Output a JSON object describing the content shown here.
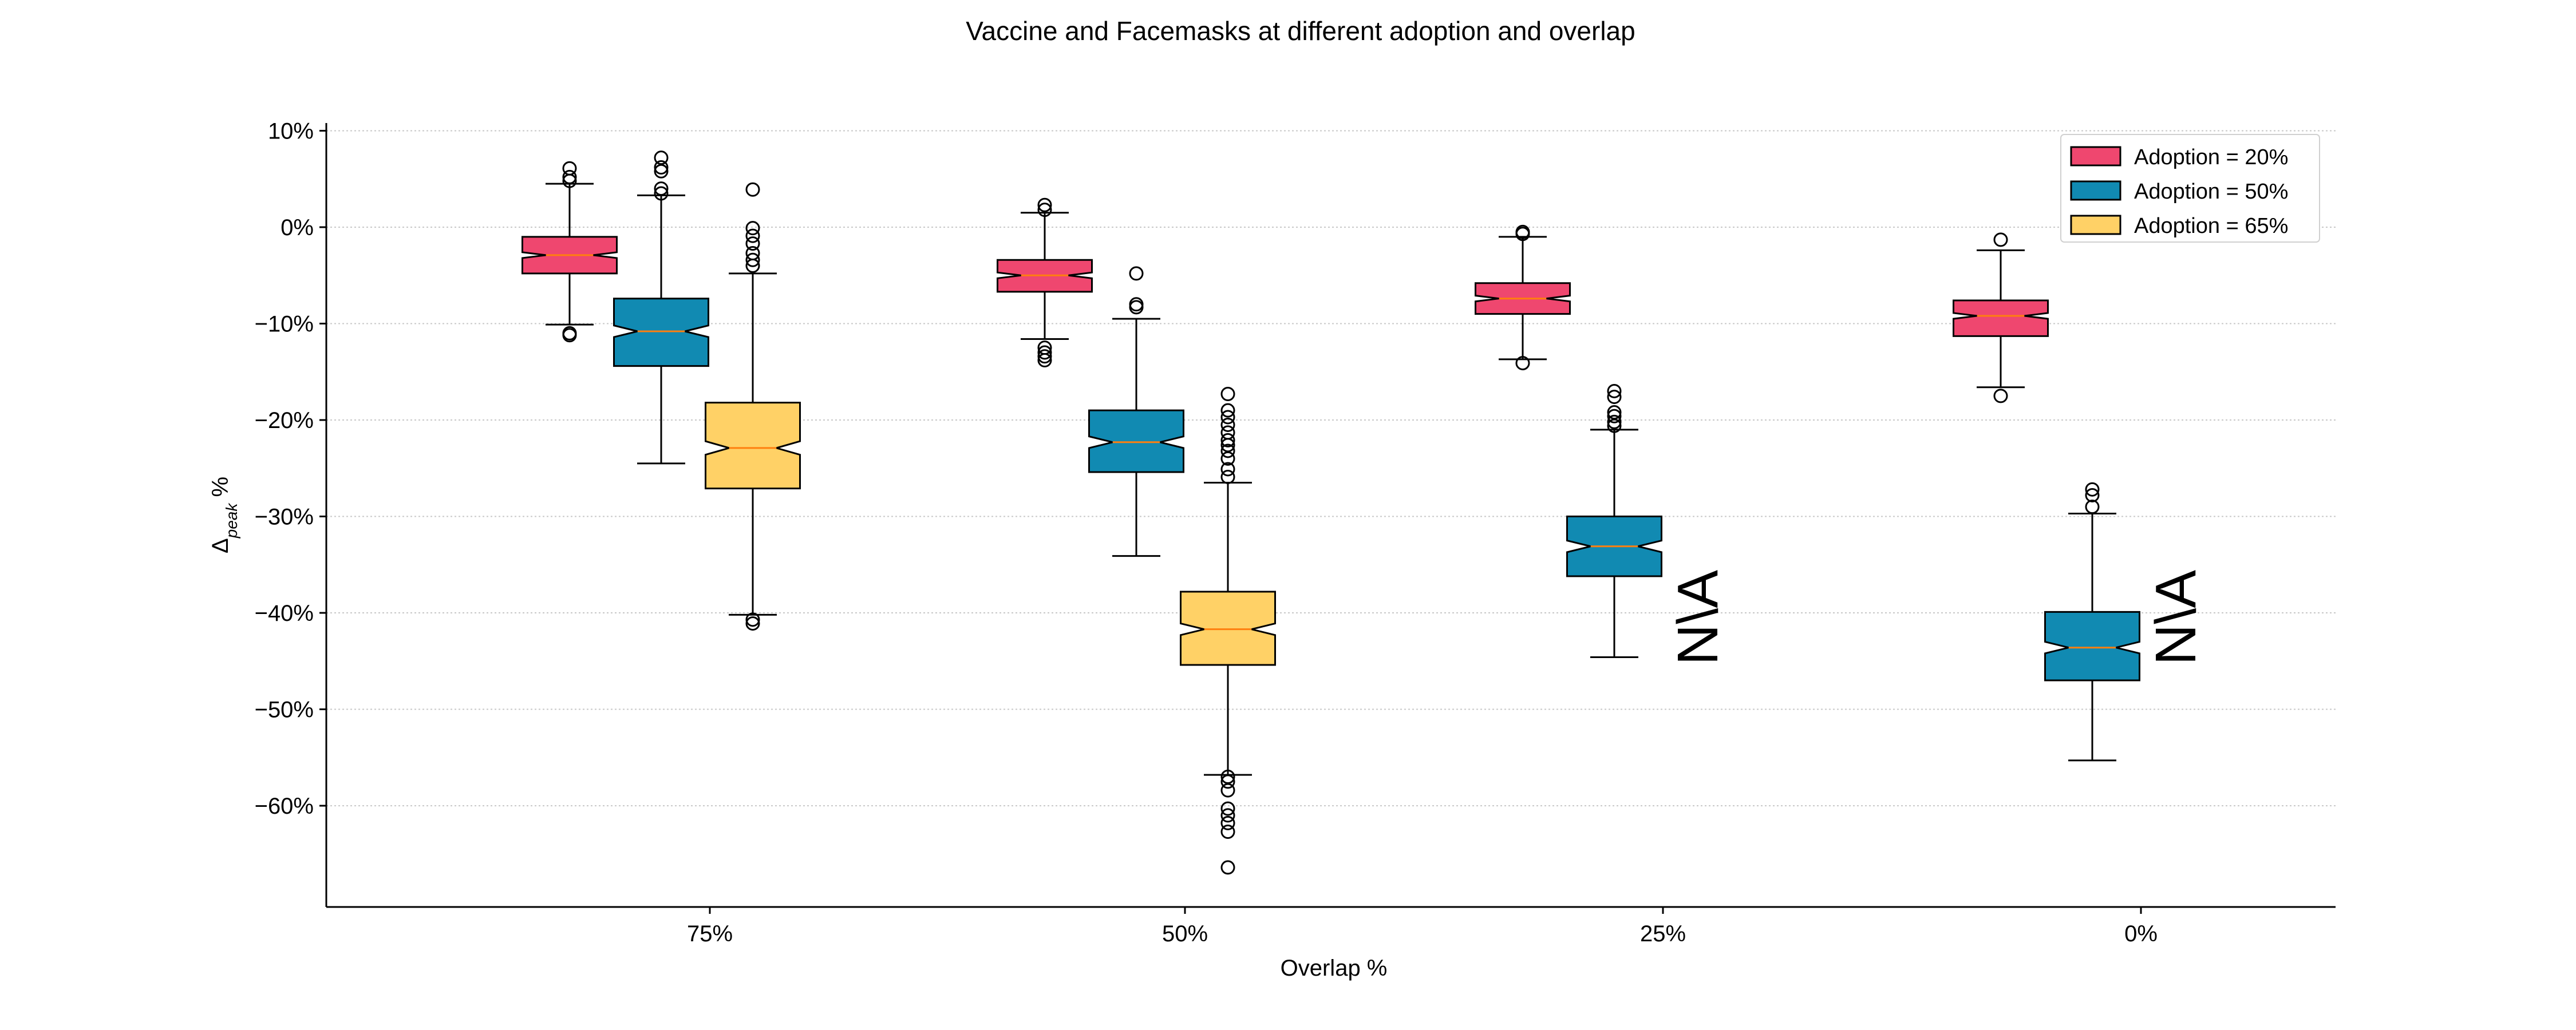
{
  "chart_data": {
    "type": "boxplot",
    "title": "Vaccine and Facemasks at different adoption and overlap",
    "xlabel": "Overlap %",
    "ylabel": {
      "base": "Δ",
      "sub": "peak",
      "suffix": " %"
    },
    "categories": [
      "75%",
      "50%",
      "25%",
      "0%"
    ],
    "yticks": [
      10,
      0,
      -10,
      -20,
      -30,
      -40,
      -50,
      -60
    ],
    "ytick_labels": [
      "10%",
      "0%",
      "−10%",
      "−20%",
      "−30%",
      "−40%",
      "−50%",
      "−60%"
    ],
    "ylim": [
      -70.5,
      10.8
    ],
    "grid": "horizontal dotted",
    "legend_position": "top-right",
    "na_label": "N\\A",
    "na_categories": [
      "25%",
      "0%"
    ],
    "series": [
      {
        "name": "Adoption = 20%",
        "color": "#EF476F",
        "boxes": [
          {
            "q1": -4.8,
            "median": -2.9,
            "q3": -1.0,
            "notch": [
              -3.2,
              -2.6
            ],
            "whislo": -10.1,
            "whishi": 4.5,
            "fliers": [
              -11.2,
              -11.0,
              4.8,
              5.2,
              6.1
            ]
          },
          {
            "q1": -6.7,
            "median": -5.0,
            "q3": -3.4,
            "notch": [
              -5.3,
              -4.7
            ],
            "whislo": -11.6,
            "whishi": 1.5,
            "fliers": [
              -13.8,
              -13.4,
              -13.0,
              -12.5,
              1.8,
              2.3
            ]
          },
          {
            "q1": -9.0,
            "median": -7.4,
            "q3": -5.8,
            "notch": [
              -7.7,
              -7.1
            ],
            "whislo": -13.7,
            "whishi": -1.0,
            "fliers": [
              -14.1,
              -0.7,
              -0.5
            ]
          },
          {
            "q1": -11.3,
            "median": -9.2,
            "q3": -7.6,
            "notch": [
              -9.5,
              -8.9
            ],
            "whislo": -16.6,
            "whishi": -2.4,
            "fliers": [
              -17.5,
              -1.3
            ]
          }
        ]
      },
      {
        "name": "Adoption = 50%",
        "color": "#118AB2",
        "boxes": [
          {
            "q1": -14.4,
            "median": -10.8,
            "q3": -7.4,
            "notch": [
              -11.4,
              -10.2
            ],
            "whislo": -24.5,
            "whishi": 3.3,
            "fliers": [
              3.5,
              4.0,
              5.8,
              6.2,
              7.2
            ]
          },
          {
            "q1": -25.4,
            "median": -22.3,
            "q3": -19.0,
            "notch": [
              -22.9,
              -21.7
            ],
            "whislo": -34.1,
            "whishi": -9.5,
            "fliers": [
              -8.3,
              -8.0,
              -4.8
            ]
          },
          {
            "q1": -36.2,
            "median": -33.1,
            "q3": -30.0,
            "notch": [
              -33.7,
              -32.5
            ],
            "whislo": -44.6,
            "whishi": -21.0,
            "fliers": [
              -20.6,
              -20.2,
              -19.6,
              -19.2,
              -17.6,
              -17.0
            ]
          },
          {
            "q1": -47.0,
            "median": -43.6,
            "q3": -39.9,
            "notch": [
              -44.2,
              -43.0
            ],
            "whislo": -55.3,
            "whishi": -29.7,
            "fliers": [
              -29.0,
              -27.8,
              -27.2
            ]
          }
        ]
      },
      {
        "name": "Adoption = 65%",
        "color": "#FFD166",
        "boxes": [
          {
            "q1": -27.1,
            "median": -22.9,
            "q3": -18.2,
            "notch": [
              -23.6,
              -22.2
            ],
            "whislo": -40.2,
            "whishi": -4.8,
            "fliers": [
              -41.1,
              -40.7,
              -4.0,
              -3.4,
              -2.7,
              -1.7,
              -0.9,
              -0.1,
              3.9
            ]
          },
          {
            "q1": -45.4,
            "median": -41.7,
            "q3": -37.8,
            "notch": [
              -42.3,
              -41.1
            ],
            "whislo": -56.8,
            "whishi": -26.5,
            "fliers": [
              -66.4,
              -62.7,
              -61.8,
              -61.0,
              -60.3,
              -58.4,
              -57.5,
              -57.0,
              -25.9,
              -25.1,
              -24.0,
              -23.2,
              -22.6,
              -22.1,
              -21.3,
              -20.5,
              -19.7,
              -19.0,
              -17.3
            ]
          }
        ]
      }
    ]
  }
}
